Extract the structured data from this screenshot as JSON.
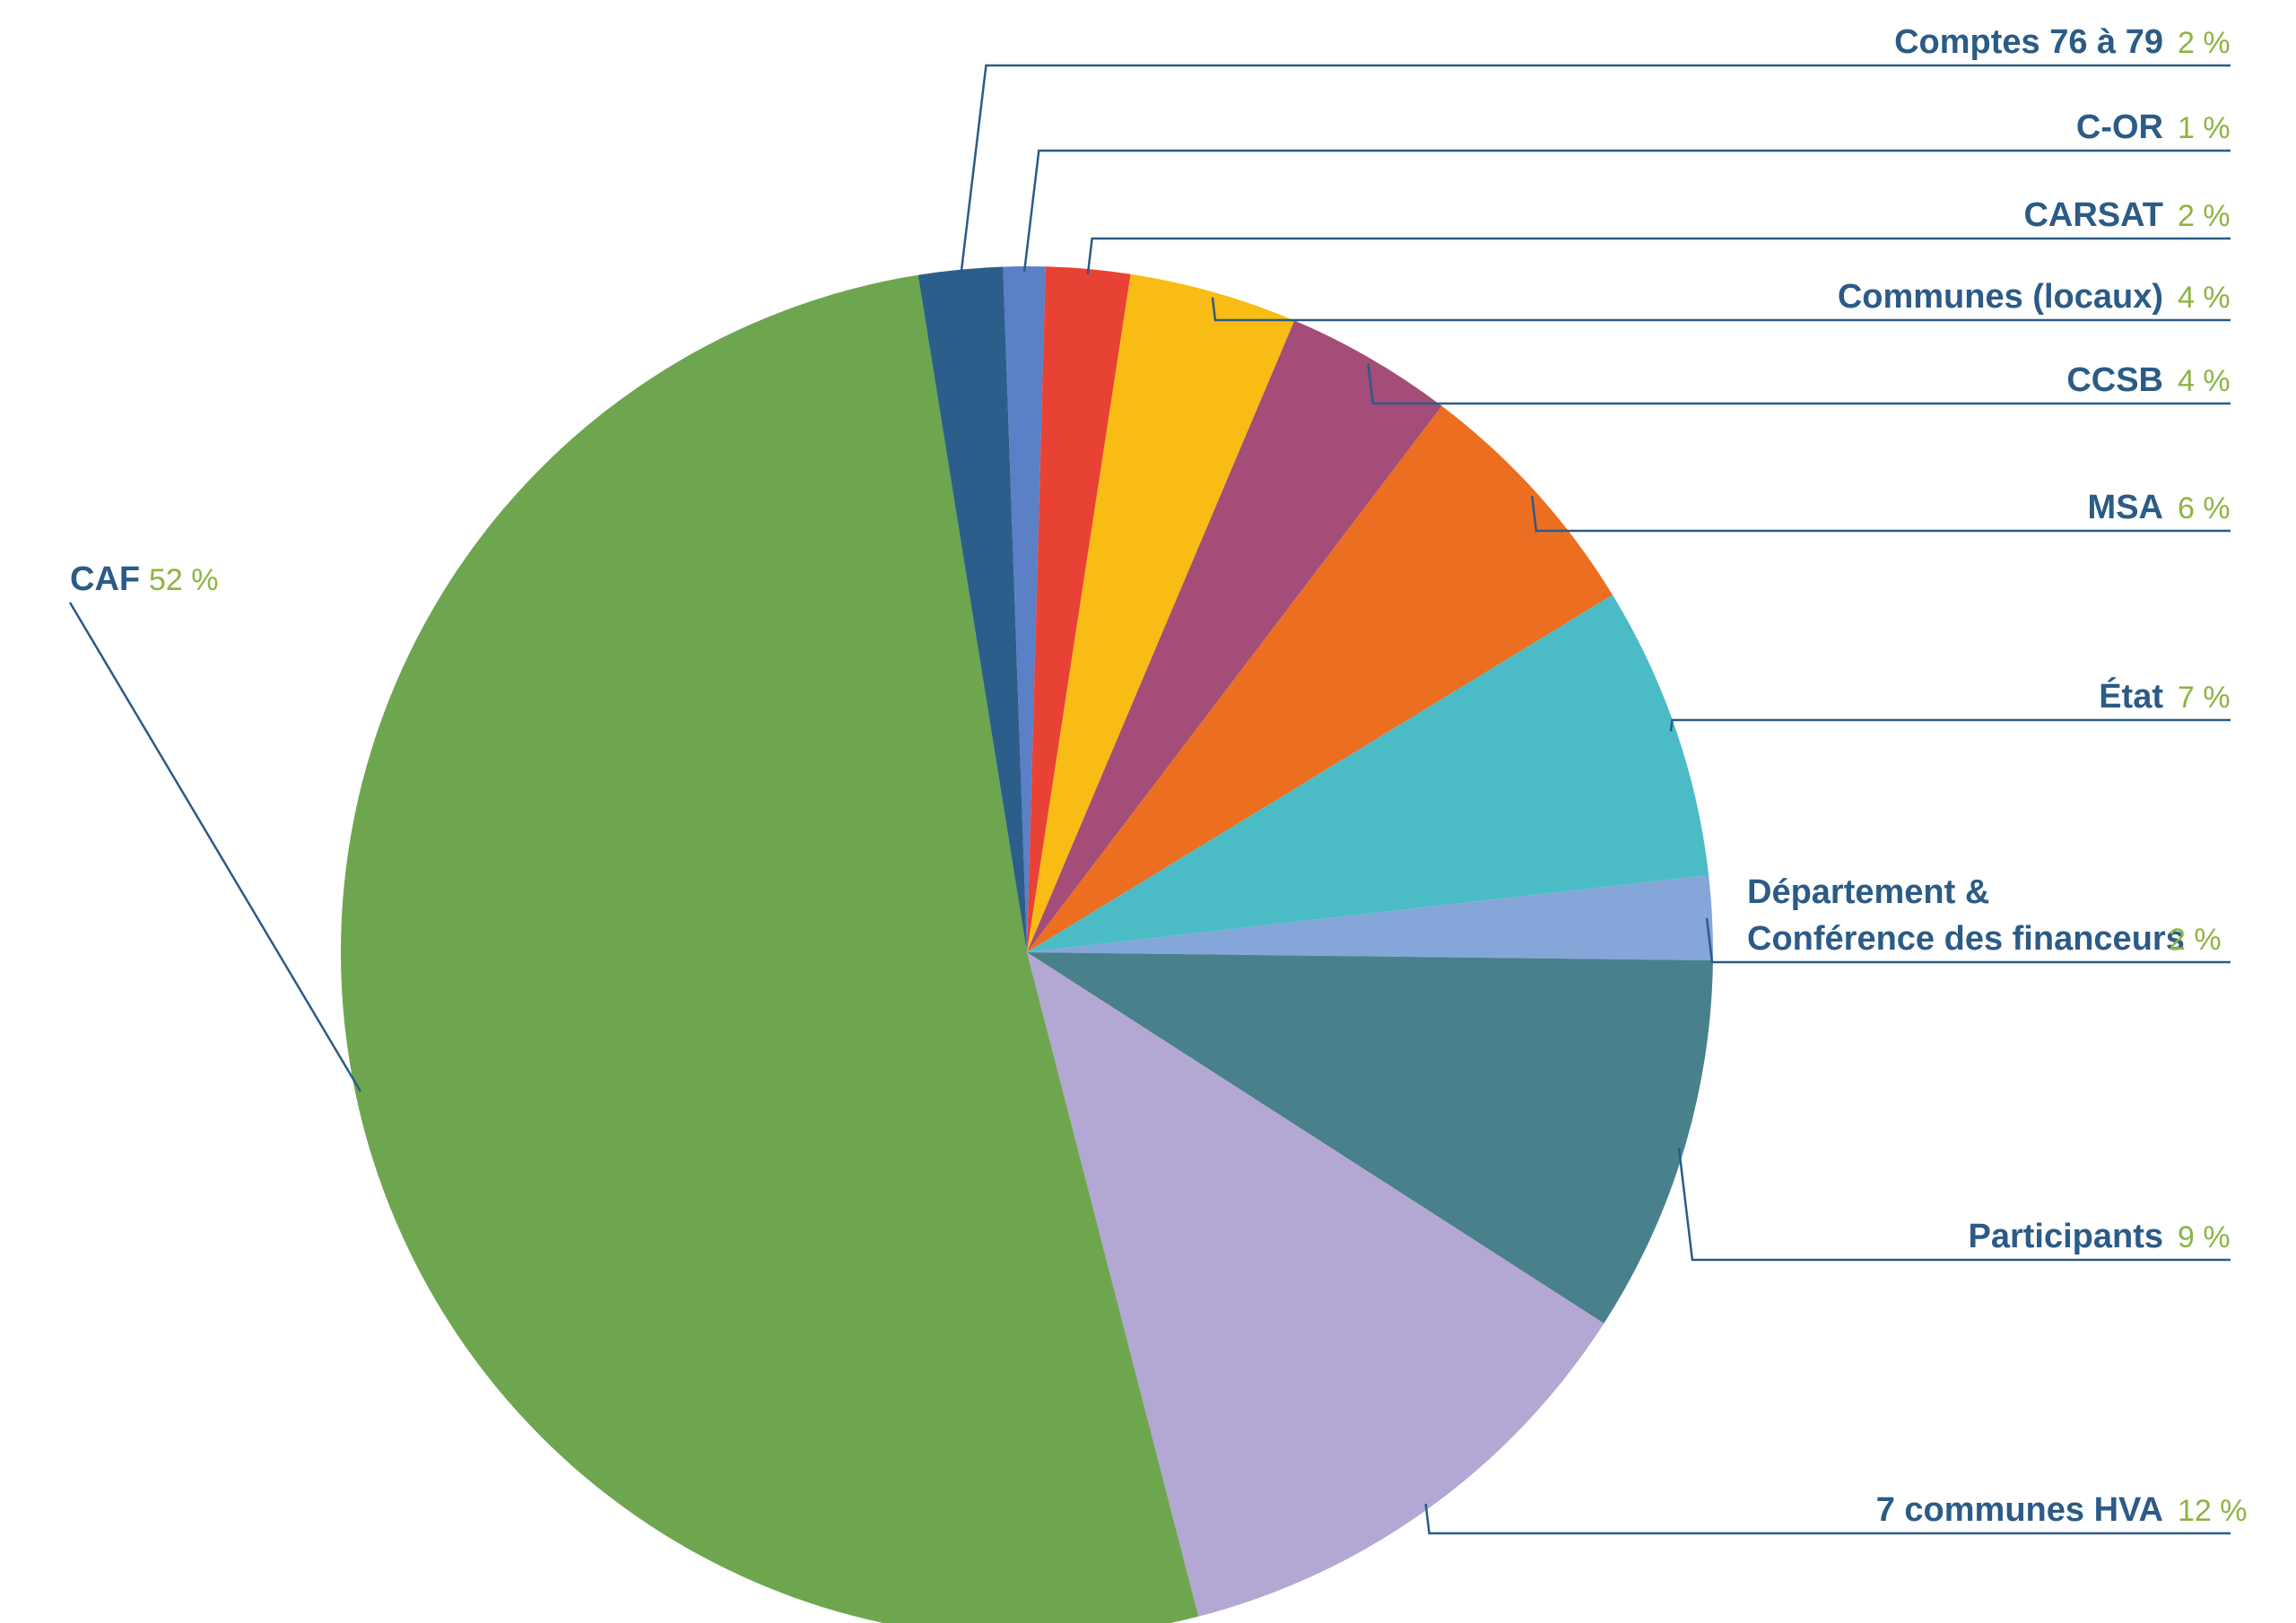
{
  "chart_data": {
    "type": "pie",
    "start_angle_deg": -2,
    "direction": "clockwise",
    "colors": {
      "label_name": "#2B5B86",
      "label_value": "#8DB443",
      "leader_line": "#2B5B86"
    },
    "slices": [
      {
        "label": "C-OR",
        "value_label": "1 %",
        "value": 1,
        "color": "#5B80C6"
      },
      {
        "label": "CARSAT",
        "value_label": "2 %",
        "value": 2,
        "color": "#E84235"
      },
      {
        "label": "Communes (locaux)",
        "value_label": "4 %",
        "value": 4,
        "color": "#F8BC14"
      },
      {
        "label": "CCSB",
        "value_label": "4 %",
        "value": 4,
        "color": "#A34D78"
      },
      {
        "label": "MSA",
        "value_label": "6 %",
        "value": 6,
        "color": "#EC6E21"
      },
      {
        "label": "État",
        "value_label": "7 %",
        "value": 7,
        "color": "#4BBCC5"
      },
      {
        "label": "Département &\nConférence des financeurs",
        "value_label": "2 %",
        "value": 2,
        "color": "#84A6D9"
      },
      {
        "label": "Participants",
        "value_label": "9 %",
        "value": 9,
        "color": "#48818B"
      },
      {
        "label": "7 communes HVA",
        "value_label": "12 %",
        "value": 12,
        "color": "#B3A7D3"
      },
      {
        "label": "CAF",
        "value_label": "52 %",
        "value": 52,
        "color": "#6EA64F"
      },
      {
        "label": "Comptes 76 à 79",
        "value_label": "2 %",
        "value": 2,
        "color": "#2C5E8B"
      }
    ]
  }
}
